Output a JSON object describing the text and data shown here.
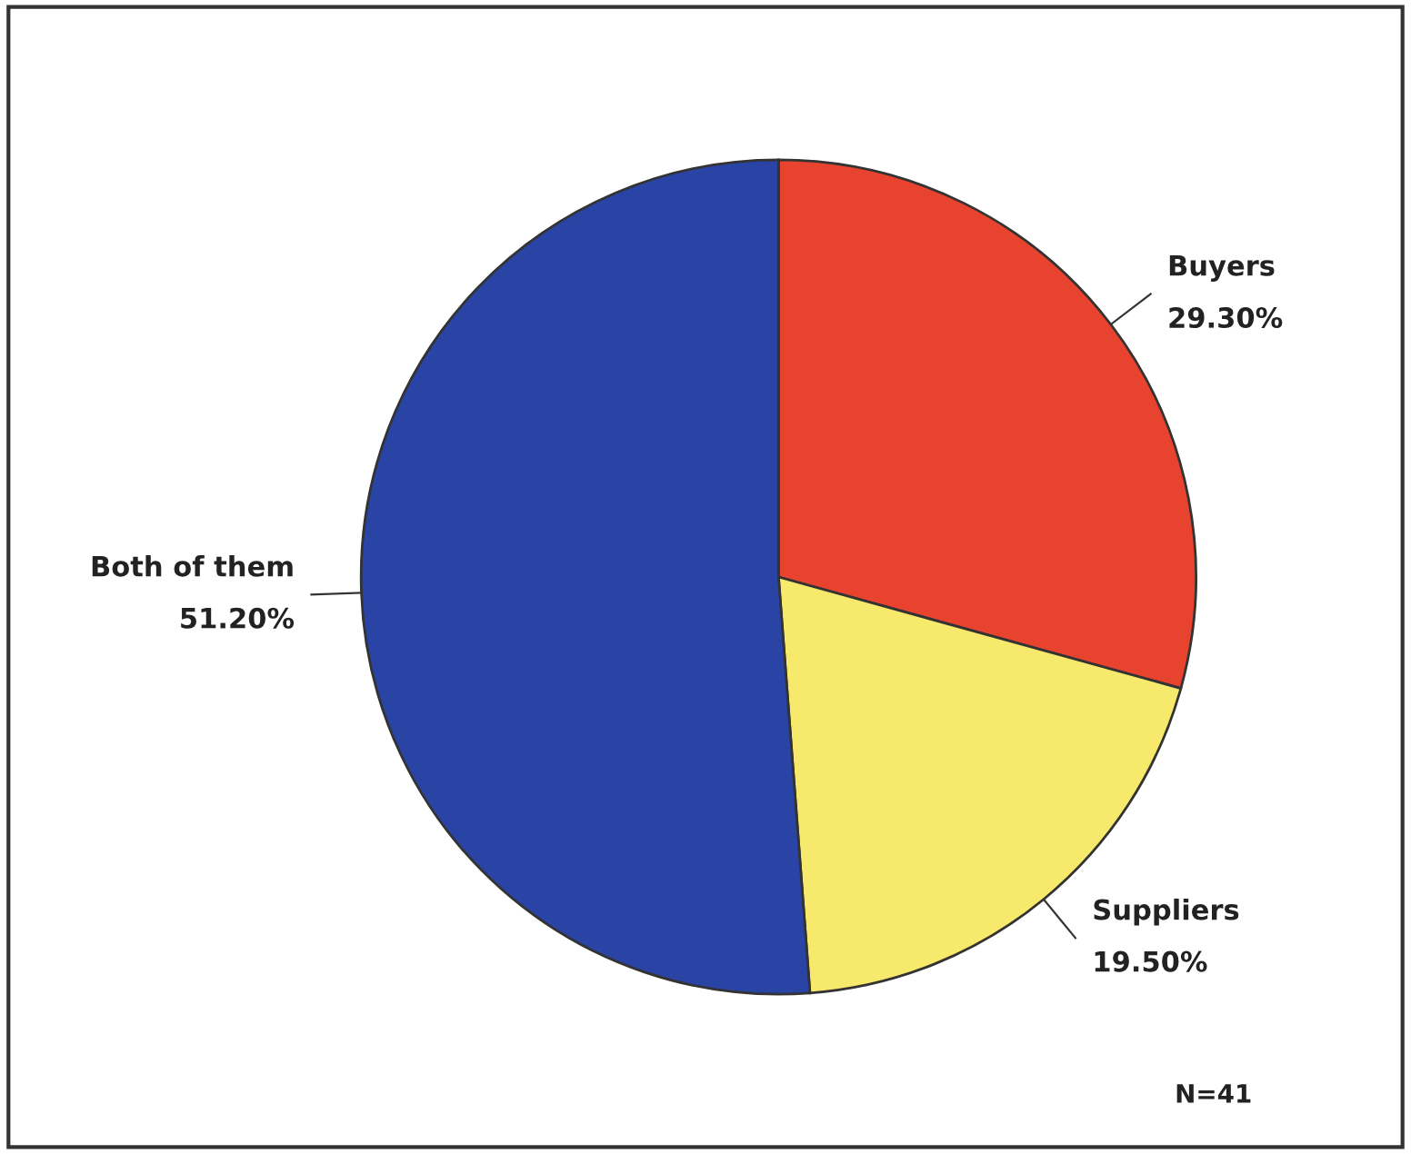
{
  "chart_data": {
    "type": "pie",
    "categories": [
      "Buyers",
      "Suppliers",
      "Both of them"
    ],
    "values": [
      29.3,
      19.5,
      51.2
    ],
    "value_labels": [
      "29.30%",
      "19.50%",
      "51.20%"
    ],
    "colors": [
      "#e8432f",
      "#f7e96c",
      "#2a44a6"
    ],
    "annotations": [
      "N=41"
    ],
    "legend": false
  }
}
